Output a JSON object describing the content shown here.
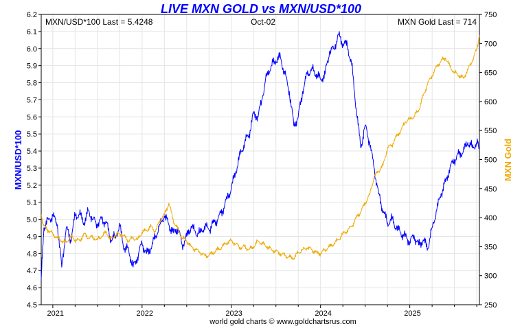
{
  "chart_data": {
    "type": "line",
    "title": "LIVE MXN GOLD vs MXN/USD*100",
    "info_left": "MXN/USD*100 Last = 5.4248",
    "info_center": "Oct-02",
    "info_right": "MXN Gold Last = 714",
    "ylabel_left": "MXN/USD*100",
    "ylabel_right": "MXN Gold",
    "footer": "world gold charts © www.goldchartsrus.com",
    "xlim": [
      2020.87,
      2025.78
    ],
    "ylim_left": [
      4.5,
      6.2
    ],
    "ylim_right": [
      250,
      750
    ],
    "x_ticks": [
      {
        "value": 2021,
        "label": "2021"
      },
      {
        "value": 2022,
        "label": "2022"
      },
      {
        "value": 2023,
        "label": "2023"
      },
      {
        "value": 2024,
        "label": "2024"
      },
      {
        "value": 2025,
        "label": "2025"
      }
    ],
    "y_ticks_left": [
      "4.5",
      "4.6",
      "4.7",
      "4.8",
      "4.9",
      "5.0",
      "5.1",
      "5.2",
      "5.3",
      "5.4",
      "5.5",
      "5.6",
      "5.7",
      "5.8",
      "5.9",
      "6.0",
      "6.1",
      "6.2"
    ],
    "y_ticks_right": [
      "250",
      "300",
      "350",
      "400",
      "450",
      "500",
      "550",
      "600",
      "650",
      "700",
      "750"
    ],
    "colors": {
      "mxnusd": "#0000ff",
      "gold": "#f0a800",
      "grid": "#e4e4e4",
      "axis": "#000000"
    },
    "series": [
      {
        "name": "MXN/USD*100",
        "axis": "left",
        "x": [
          2020.87,
          2020.9,
          2020.95,
          2021.0,
          2021.05,
          2021.1,
          2021.15,
          2021.2,
          2021.25,
          2021.3,
          2021.35,
          2021.4,
          2021.45,
          2021.5,
          2021.55,
          2021.6,
          2021.65,
          2021.7,
          2021.75,
          2021.8,
          2021.85,
          2021.9,
          2021.95,
          2022.0,
          2022.05,
          2022.1,
          2022.15,
          2022.2,
          2022.25,
          2022.3,
          2022.35,
          2022.4,
          2022.45,
          2022.5,
          2022.55,
          2022.6,
          2022.65,
          2022.7,
          2022.75,
          2022.8,
          2022.85,
          2022.9,
          2022.95,
          2023.0,
          2023.05,
          2023.1,
          2023.15,
          2023.2,
          2023.25,
          2023.3,
          2023.35,
          2023.4,
          2023.45,
          2023.5,
          2023.55,
          2023.6,
          2023.65,
          2023.7,
          2023.75,
          2023.8,
          2023.85,
          2023.9,
          2023.95,
          2024.0,
          2024.05,
          2024.1,
          2024.15,
          2024.2,
          2024.25,
          2024.3,
          2024.35,
          2024.4,
          2024.45,
          2024.5,
          2024.55,
          2024.6,
          2024.65,
          2024.7,
          2024.75,
          2024.8,
          2024.85,
          2024.9,
          2024.95,
          2025.0,
          2025.05,
          2025.1,
          2025.15,
          2025.2,
          2025.25,
          2025.3,
          2025.35,
          2025.4,
          2025.45,
          2025.5,
          2025.55,
          2025.6,
          2025.65,
          2025.7,
          2025.75,
          2025.78
        ],
        "values": [
          4.65,
          4.95,
          5.0,
          5.02,
          4.97,
          4.72,
          4.95,
          4.88,
          5.02,
          5.03,
          4.98,
          5.05,
          5.0,
          4.97,
          5.0,
          4.98,
          4.88,
          4.9,
          4.96,
          4.83,
          4.82,
          4.72,
          4.78,
          4.86,
          4.8,
          4.83,
          4.9,
          4.97,
          5.02,
          4.97,
          4.92,
          4.95,
          4.85,
          4.9,
          4.96,
          4.92,
          4.92,
          4.96,
          4.94,
          4.98,
          5.0,
          5.05,
          5.12,
          5.18,
          5.28,
          5.38,
          5.45,
          5.5,
          5.62,
          5.6,
          5.72,
          5.85,
          5.9,
          5.93,
          5.95,
          5.85,
          5.75,
          5.55,
          5.6,
          5.75,
          5.85,
          5.88,
          5.85,
          5.82,
          5.85,
          5.98,
          6.0,
          6.08,
          6.03,
          6.02,
          5.9,
          5.65,
          5.42,
          5.55,
          5.45,
          5.3,
          5.15,
          5.05,
          4.98,
          5.0,
          4.95,
          4.92,
          4.9,
          4.87,
          4.9,
          4.85,
          4.88,
          4.83,
          4.95,
          5.05,
          5.15,
          5.22,
          5.3,
          5.35,
          5.38,
          5.4,
          5.45,
          5.42,
          5.45,
          5.42
        ]
      },
      {
        "name": "MXN Gold",
        "axis": "right",
        "x": [
          2020.87,
          2020.9,
          2020.95,
          2021.0,
          2021.05,
          2021.1,
          2021.15,
          2021.2,
          2021.25,
          2021.3,
          2021.35,
          2021.4,
          2021.45,
          2021.5,
          2021.55,
          2021.6,
          2021.65,
          2021.7,
          2021.75,
          2021.8,
          2021.85,
          2021.9,
          2021.95,
          2022.0,
          2022.05,
          2022.1,
          2022.15,
          2022.2,
          2022.25,
          2022.3,
          2022.35,
          2022.4,
          2022.45,
          2022.5,
          2022.55,
          2022.6,
          2022.65,
          2022.7,
          2022.75,
          2022.8,
          2022.85,
          2022.9,
          2022.95,
          2023.0,
          2023.05,
          2023.1,
          2023.15,
          2023.2,
          2023.25,
          2023.3,
          2023.35,
          2023.4,
          2023.45,
          2023.5,
          2023.55,
          2023.6,
          2023.65,
          2023.7,
          2023.75,
          2023.8,
          2023.85,
          2023.9,
          2023.95,
          2024.0,
          2024.05,
          2024.1,
          2024.15,
          2024.2,
          2024.25,
          2024.3,
          2024.35,
          2024.4,
          2024.45,
          2024.5,
          2024.55,
          2024.6,
          2024.65,
          2024.7,
          2024.75,
          2024.8,
          2024.85,
          2024.9,
          2024.95,
          2025.0,
          2025.05,
          2025.1,
          2025.15,
          2025.2,
          2025.25,
          2025.3,
          2025.35,
          2025.4,
          2025.45,
          2025.5,
          2025.55,
          2025.6,
          2025.65,
          2025.7,
          2025.75,
          2025.78
        ],
        "values": [
          405,
          385,
          378,
          372,
          365,
          360,
          357,
          368,
          362,
          360,
          372,
          365,
          366,
          362,
          368,
          375,
          362,
          370,
          372,
          368,
          360,
          365,
          362,
          375,
          378,
          385,
          376,
          395,
          405,
          425,
          395,
          380,
          365,
          360,
          350,
          345,
          340,
          335,
          335,
          340,
          345,
          350,
          357,
          360,
          355,
          348,
          350,
          345,
          350,
          360,
          355,
          350,
          345,
          342,
          338,
          335,
          332,
          330,
          340,
          345,
          348,
          345,
          340,
          338,
          345,
          350,
          355,
          362,
          372,
          378,
          385,
          400,
          410,
          425,
          440,
          470,
          480,
          490,
          520,
          525,
          540,
          550,
          565,
          570,
          575,
          585,
          610,
          630,
          645,
          660,
          670,
          675,
          660,
          650,
          645,
          640,
          655,
          670,
          690,
          714
        ]
      }
    ]
  }
}
